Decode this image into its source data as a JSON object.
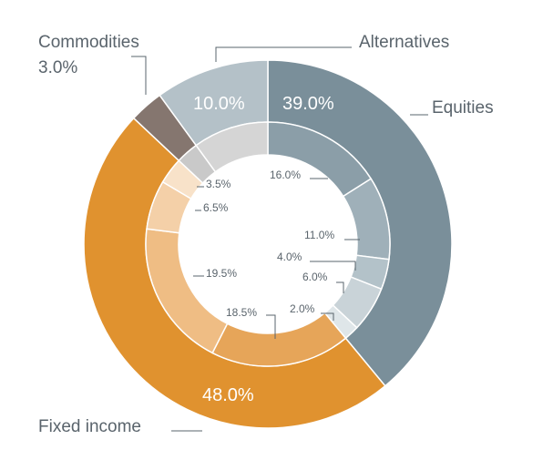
{
  "chart_data": {
    "type": "pie",
    "outer": [
      {
        "label": "Equities",
        "value": 39.0,
        "display": "39.0%",
        "color": "#7a8f9a"
      },
      {
        "label": "Fixed income",
        "value": 48.0,
        "display": "48.0%",
        "color": "#e0922f"
      },
      {
        "label": "Commodities",
        "value": 3.0,
        "display": "3.0%",
        "color": "#85766f"
      },
      {
        "label": "Alternatives",
        "value": 10.0,
        "display": "10.0%",
        "color": "#b4c1c8"
      }
    ],
    "inner": [
      {
        "group": "Equities",
        "value": 16.0,
        "display": "16.0%",
        "color": "#8b9ea8"
      },
      {
        "group": "Equities",
        "value": 11.0,
        "display": "11.0%",
        "color": "#9fb0b9"
      },
      {
        "group": "Equities",
        "value": 4.0,
        "display": "4.0%",
        "color": "#b3c2c9"
      },
      {
        "group": "Equities",
        "value": 6.0,
        "display": "6.0%",
        "color": "#c9d3d8"
      },
      {
        "group": "Equities",
        "value": 2.0,
        "display": "2.0%",
        "color": "#dfe6e9"
      },
      {
        "group": "Fixed income",
        "value": 18.5,
        "display": "18.5%",
        "color": "#e6a559"
      },
      {
        "group": "Fixed income",
        "value": 19.5,
        "display": "19.5%",
        "color": "#efbd84"
      },
      {
        "group": "Fixed income",
        "value": 6.5,
        "display": "6.5%",
        "color": "#f4d0a8"
      },
      {
        "group": "Fixed income",
        "value": 3.5,
        "display": "3.5%",
        "color": "#f8e2c9"
      },
      {
        "group": "Commodities",
        "value": 3.0,
        "display": "",
        "color": "#c9c9c9"
      },
      {
        "group": "Alternatives",
        "value": 10.0,
        "display": "",
        "color": "#d5d5d5"
      }
    ]
  }
}
